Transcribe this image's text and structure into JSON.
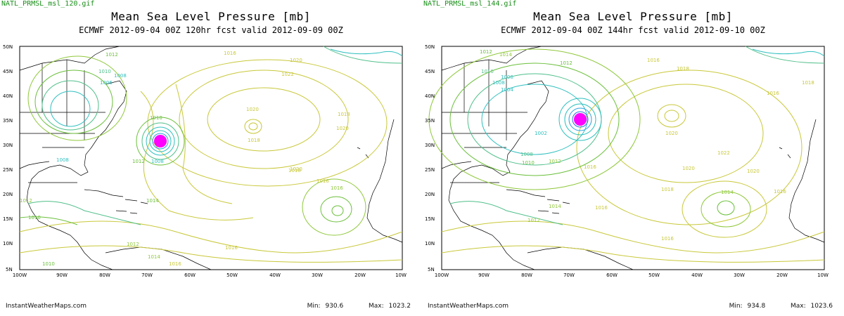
{
  "panels": [
    {
      "filename": "NATL_PRMSL_msl_120.gif",
      "title": "Mean Sea Level Pressure [mb]",
      "subtitle": "ECMWF 2012-09-04 00Z 120hr fcst valid 2012-09-09 00Z",
      "site": "InstantWeatherMaps.com",
      "min_label": "Min:",
      "min_value": "930.6",
      "max_label": "Max:",
      "max_value": "1023.2",
      "lat_labels": [
        "50N",
        "45N",
        "40N",
        "35N",
        "30N",
        "25N",
        "20N",
        "15N",
        "10N",
        "5N"
      ],
      "lon_labels": [
        "100W",
        "90W",
        "80W",
        "70W",
        "60W",
        "50W",
        "40W",
        "30W",
        "20W",
        "10W"
      ],
      "contour_labels": [
        "1012",
        "1010",
        "1008",
        "1006",
        "1016",
        "1020",
        "1022",
        "1020",
        "1018",
        "1018",
        "1020",
        "1010",
        "1008",
        "1012",
        "1014",
        "1018",
        "1016",
        "1016",
        "1010",
        "1012",
        "1014",
        "1016",
        "1012",
        "1010",
        "1008",
        "1016",
        "1020"
      ]
    },
    {
      "filename": "NATL_PRMSL_msl_144.gif",
      "title": "Mean Sea Level Pressure [mb]",
      "subtitle": "ECMWF 2012-09-04 00Z 144hr fcst valid 2012-09-10 00Z",
      "site": "InstantWeatherMaps.com",
      "min_label": "Min:",
      "min_value": "934.8",
      "max_label": "Max:",
      "max_value": "1023.6",
      "lat_labels": [
        "50N",
        "45N",
        "40N",
        "35N",
        "30N",
        "25N",
        "20N",
        "15N",
        "10N",
        "5N"
      ],
      "lon_labels": [
        "100W",
        "90W",
        "80W",
        "70W",
        "60W",
        "50W",
        "40W",
        "30W",
        "20W",
        "10W"
      ],
      "contour_labels": [
        "1012",
        "1014",
        "1016",
        "1018",
        "1012",
        "1010",
        "1008",
        "1004",
        "1006",
        "1002",
        "1008",
        "1010",
        "1012",
        "1016",
        "1020",
        "1022",
        "1020",
        "1018",
        "1020",
        "1016",
        "1014",
        "1016",
        "1018",
        "1016",
        "1014",
        "1012",
        "1016"
      ]
    }
  ],
  "colors": {
    "high_contour": "#c8c83a",
    "mid_contour": "#6abf3a",
    "low_contour": "#2fbfbf",
    "deep_low": "#2a6fdf",
    "storm_center": "#ff00ff",
    "land_border": "#000000"
  }
}
